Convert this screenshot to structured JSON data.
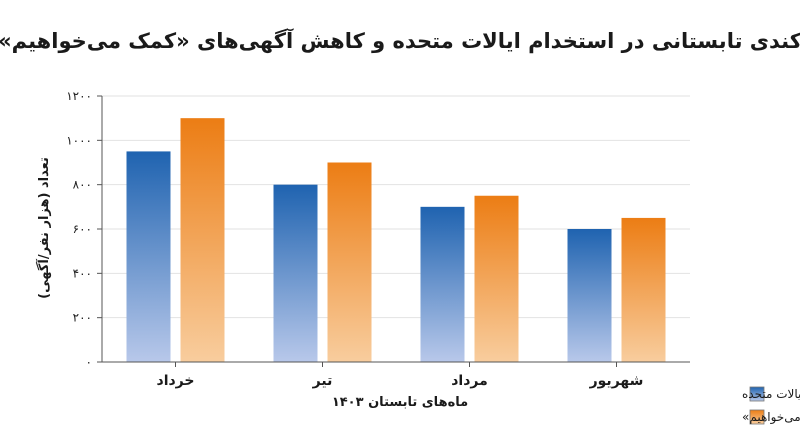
{
  "chart_data": {
    "type": "bar",
    "title": "کندی تابستانی در استخدام ایالات متحده و کاهش آگهی‌های «کمک می‌خواهیم»",
    "xlabel": "ماه‌های تابستان ۱۴۰۳",
    "ylabel": "تعداد (هزار نفر/آگهی)",
    "categories": [
      "خرداد",
      "تیر",
      "مرداد",
      "شهریور"
    ],
    "ylim": [
      0,
      1200
    ],
    "yticks": [
      0,
      200,
      400,
      600,
      800,
      1000,
      1200
    ],
    "ytick_labels": [
      "۰",
      "۲۰۰",
      "۴۰۰",
      "۶۰۰",
      "۸۰۰",
      "۱۰۰۰",
      "۱۲۰۰"
    ],
    "grid": true,
    "legend_position": "bottom-right",
    "series": [
      {
        "name": "استخدام ایالات متحده",
        "values": [
          950,
          800,
          700,
          600
        ],
        "color_top": "#1f63b0",
        "color_bottom": "#b8c8ea"
      },
      {
        "name": "آگهی‌های «کمک می‌خواهیم»",
        "values": [
          1100,
          900,
          750,
          650
        ],
        "color_top": "#ec7d14",
        "color_bottom": "#f8cd9e"
      }
    ]
  }
}
